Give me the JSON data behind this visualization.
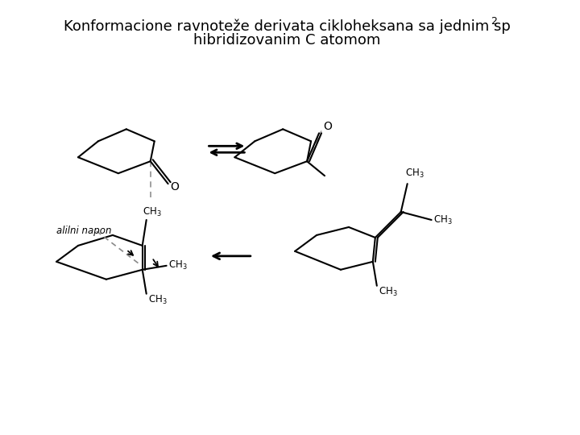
{
  "title_line1": "Konformacione ravnoteže derivata cikloheksana sa jednim sp",
  "title_superscript": "2",
  "title_line2": "hibridizovanim C atomom",
  "bg_color": "#ffffff",
  "line_color": "#000000",
  "dashed_color": "#aaaaaa",
  "title_fontsize": 13,
  "label_fontsize": 9
}
